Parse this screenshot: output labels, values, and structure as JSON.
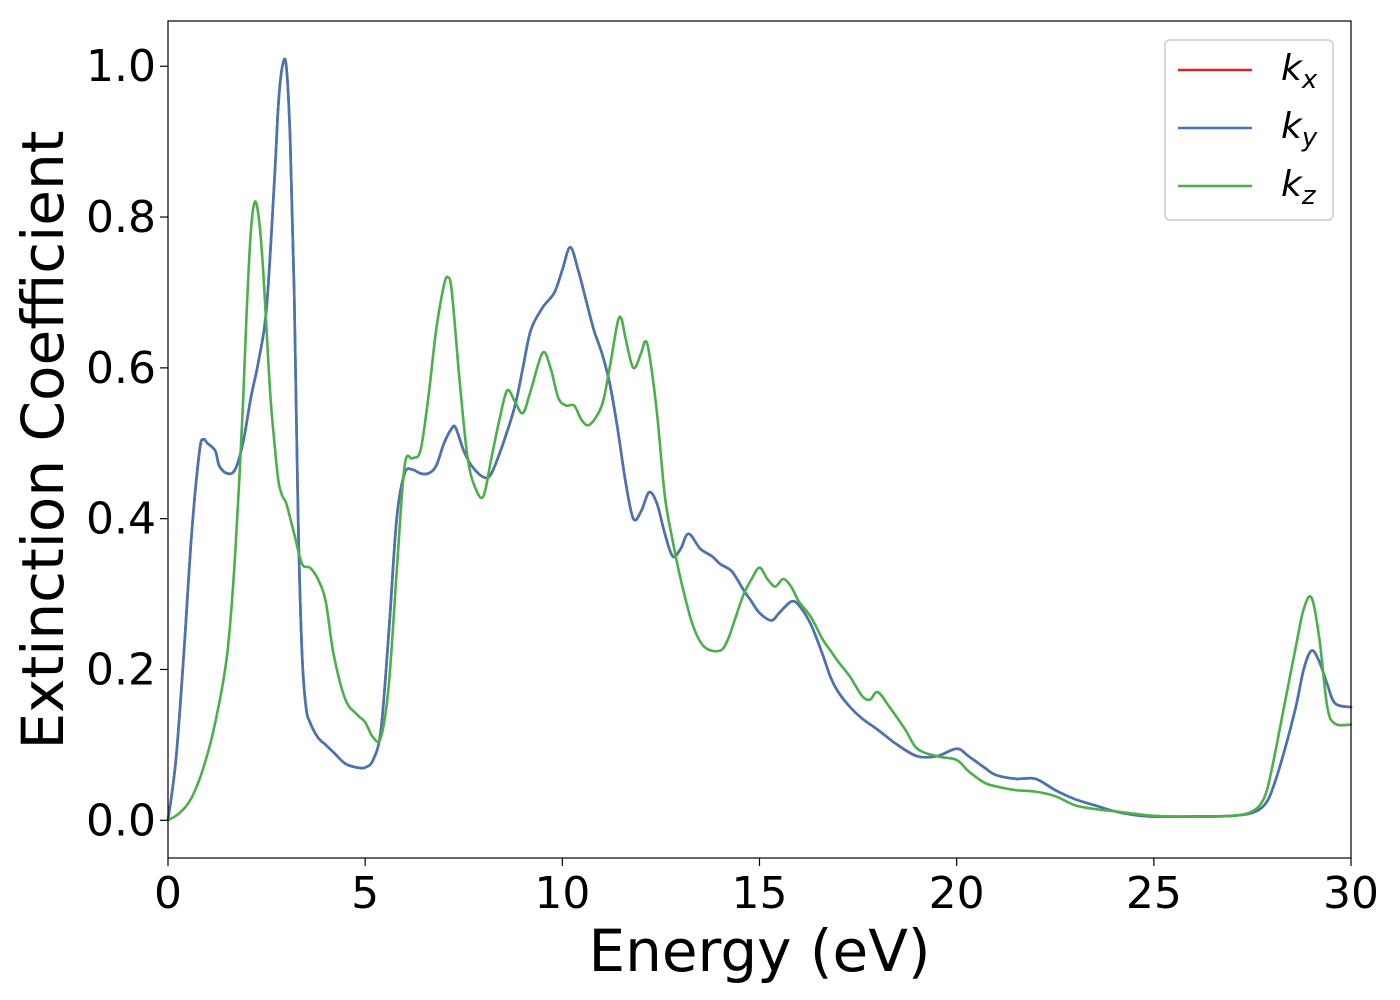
{
  "chart_data": {
    "type": "line",
    "xlabel": "Energy (eV)",
    "ylabel": "Extinction Coefficient",
    "xlim": [
      0,
      30
    ],
    "ylim": [
      -0.05,
      1.06
    ],
    "xticks": [
      0,
      5,
      10,
      15,
      20,
      25,
      30
    ],
    "yticks": [
      0.0,
      0.2,
      0.4,
      0.6,
      0.8,
      1.0
    ],
    "grid": false,
    "legend_position": "top-right",
    "series": [
      {
        "name": "k_x",
        "legend_base": "k",
        "legend_sub": "x",
        "color": "#d62728",
        "x": [
          0,
          0.2,
          0.4,
          0.6,
          0.8,
          0.9,
          1.0,
          1.2,
          1.3,
          1.5,
          1.7,
          1.9,
          2.1,
          2.3,
          2.5,
          2.7,
          2.8,
          2.9,
          3.0,
          3.1,
          3.2,
          3.3,
          3.4,
          3.5,
          3.6,
          3.8,
          4.0,
          4.2,
          4.5,
          4.8,
          5.0,
          5.2,
          5.4,
          5.6,
          5.8,
          6.0,
          6.2,
          6.4,
          6.6,
          6.8,
          7.0,
          7.2,
          7.3,
          7.5,
          7.7,
          8.0,
          8.2,
          8.5,
          8.8,
          9.0,
          9.2,
          9.5,
          9.8,
          10.0,
          10.2,
          10.4,
          10.6,
          10.8,
          11.0,
          11.2,
          11.4,
          11.6,
          11.8,
          12.0,
          12.2,
          12.4,
          12.6,
          12.8,
          13.0,
          13.2,
          13.5,
          13.8,
          14.0,
          14.3,
          14.6,
          14.8,
          15.0,
          15.3,
          15.5,
          15.8,
          16.0,
          16.3,
          16.6,
          16.8,
          17.0,
          17.3,
          17.6,
          18.0,
          18.5,
          19.0,
          19.5,
          20.0,
          20.3,
          20.7,
          21.0,
          21.5,
          22.0,
          22.5,
          23.0,
          23.5,
          24.0,
          24.5,
          25.0,
          26.0,
          27.0,
          27.5,
          27.8,
          28.0,
          28.3,
          28.6,
          28.8,
          29.0,
          29.2,
          29.4,
          29.6,
          30.0
        ],
        "y": [
          0.0,
          0.08,
          0.22,
          0.38,
          0.49,
          0.505,
          0.5,
          0.49,
          0.47,
          0.46,
          0.465,
          0.5,
          0.56,
          0.61,
          0.68,
          0.85,
          0.95,
          1.0,
          1.0,
          0.9,
          0.7,
          0.4,
          0.22,
          0.15,
          0.13,
          0.11,
          0.1,
          0.09,
          0.075,
          0.07,
          0.07,
          0.08,
          0.12,
          0.25,
          0.4,
          0.46,
          0.465,
          0.46,
          0.46,
          0.47,
          0.5,
          0.52,
          0.52,
          0.49,
          0.47,
          0.455,
          0.46,
          0.5,
          0.55,
          0.6,
          0.65,
          0.68,
          0.7,
          0.73,
          0.76,
          0.73,
          0.69,
          0.65,
          0.62,
          0.58,
          0.52,
          0.45,
          0.4,
          0.41,
          0.435,
          0.42,
          0.38,
          0.35,
          0.36,
          0.38,
          0.36,
          0.35,
          0.34,
          0.33,
          0.305,
          0.29,
          0.275,
          0.265,
          0.275,
          0.29,
          0.285,
          0.26,
          0.22,
          0.19,
          0.17,
          0.15,
          0.135,
          0.12,
          0.1,
          0.085,
          0.085,
          0.095,
          0.085,
          0.07,
          0.06,
          0.055,
          0.055,
          0.04,
          0.028,
          0.02,
          0.012,
          0.007,
          0.005,
          0.005,
          0.006,
          0.01,
          0.02,
          0.04,
          0.09,
          0.15,
          0.2,
          0.225,
          0.21,
          0.18,
          0.155,
          0.15
        ]
      },
      {
        "name": "k_y",
        "legend_base": "k",
        "legend_sub": "y",
        "color": "#4575b4",
        "x": [
          0,
          0.2,
          0.4,
          0.6,
          0.8,
          0.9,
          1.0,
          1.2,
          1.3,
          1.5,
          1.7,
          1.9,
          2.1,
          2.3,
          2.5,
          2.7,
          2.8,
          2.9,
          3.0,
          3.1,
          3.2,
          3.3,
          3.4,
          3.5,
          3.6,
          3.8,
          4.0,
          4.2,
          4.5,
          4.8,
          5.0,
          5.2,
          5.4,
          5.6,
          5.8,
          6.0,
          6.2,
          6.4,
          6.6,
          6.8,
          7.0,
          7.2,
          7.3,
          7.5,
          7.7,
          8.0,
          8.2,
          8.5,
          8.8,
          9.0,
          9.2,
          9.5,
          9.8,
          10.0,
          10.2,
          10.4,
          10.6,
          10.8,
          11.0,
          11.2,
          11.4,
          11.6,
          11.8,
          12.0,
          12.2,
          12.4,
          12.6,
          12.8,
          13.0,
          13.2,
          13.5,
          13.8,
          14.0,
          14.3,
          14.6,
          14.8,
          15.0,
          15.3,
          15.5,
          15.8,
          16.0,
          16.3,
          16.6,
          16.8,
          17.0,
          17.3,
          17.6,
          18.0,
          18.5,
          19.0,
          19.5,
          20.0,
          20.3,
          20.7,
          21.0,
          21.5,
          22.0,
          22.5,
          23.0,
          23.5,
          24.0,
          24.5,
          25.0,
          26.0,
          27.0,
          27.5,
          27.8,
          28.0,
          28.3,
          28.6,
          28.8,
          29.0,
          29.2,
          29.4,
          29.6,
          30.0
        ],
        "y": [
          0.0,
          0.08,
          0.22,
          0.38,
          0.49,
          0.505,
          0.5,
          0.49,
          0.47,
          0.46,
          0.465,
          0.5,
          0.56,
          0.61,
          0.68,
          0.85,
          0.95,
          1.0,
          1.0,
          0.9,
          0.7,
          0.4,
          0.22,
          0.15,
          0.13,
          0.11,
          0.1,
          0.09,
          0.075,
          0.07,
          0.07,
          0.08,
          0.12,
          0.25,
          0.4,
          0.46,
          0.465,
          0.46,
          0.46,
          0.47,
          0.5,
          0.52,
          0.52,
          0.49,
          0.47,
          0.455,
          0.46,
          0.5,
          0.55,
          0.6,
          0.65,
          0.68,
          0.7,
          0.73,
          0.76,
          0.73,
          0.69,
          0.65,
          0.62,
          0.58,
          0.52,
          0.45,
          0.4,
          0.41,
          0.435,
          0.42,
          0.38,
          0.35,
          0.36,
          0.38,
          0.36,
          0.35,
          0.34,
          0.33,
          0.305,
          0.29,
          0.275,
          0.265,
          0.275,
          0.29,
          0.285,
          0.26,
          0.22,
          0.19,
          0.17,
          0.15,
          0.135,
          0.12,
          0.1,
          0.085,
          0.085,
          0.095,
          0.085,
          0.07,
          0.06,
          0.055,
          0.055,
          0.04,
          0.028,
          0.02,
          0.012,
          0.007,
          0.005,
          0.005,
          0.006,
          0.01,
          0.02,
          0.04,
          0.09,
          0.15,
          0.2,
          0.225,
          0.21,
          0.18,
          0.155,
          0.15
        ]
      },
      {
        "name": "k_z",
        "legend_base": "k",
        "legend_sub": "z",
        "color": "#4daf4a",
        "x": [
          0,
          0.3,
          0.6,
          0.9,
          1.2,
          1.5,
          1.7,
          1.9,
          2.0,
          2.1,
          2.2,
          2.3,
          2.4,
          2.5,
          2.6,
          2.7,
          2.8,
          2.9,
          3.0,
          3.2,
          3.4,
          3.6,
          3.8,
          4.0,
          4.2,
          4.5,
          4.8,
          5.0,
          5.2,
          5.4,
          5.6,
          5.8,
          6.0,
          6.2,
          6.4,
          6.6,
          6.8,
          7.0,
          7.1,
          7.2,
          7.4,
          7.6,
          7.8,
          8.0,
          8.2,
          8.4,
          8.6,
          8.8,
          9.0,
          9.2,
          9.5,
          9.7,
          9.9,
          10.1,
          10.3,
          10.5,
          10.7,
          11.0,
          11.2,
          11.4,
          11.5,
          11.6,
          11.8,
          12.0,
          12.1,
          12.2,
          12.4,
          12.6,
          12.8,
          13.0,
          13.3,
          13.6,
          14.0,
          14.2,
          14.4,
          14.6,
          14.8,
          15.0,
          15.2,
          15.4,
          15.6,
          15.8,
          16.0,
          16.3,
          16.6,
          16.8,
          17.0,
          17.3,
          17.6,
          17.8,
          18.0,
          18.3,
          18.7,
          19.0,
          19.5,
          20.0,
          20.3,
          20.7,
          21.0,
          21.5,
          22.0,
          22.5,
          23.0,
          23.5,
          24.0,
          25.0,
          26.0,
          27.0,
          27.5,
          27.8,
          28.0,
          28.3,
          28.6,
          28.8,
          29.0,
          29.2,
          29.4,
          29.6,
          30.0
        ],
        "y": [
          0.0,
          0.01,
          0.03,
          0.07,
          0.13,
          0.22,
          0.35,
          0.55,
          0.68,
          0.78,
          0.82,
          0.8,
          0.74,
          0.65,
          0.56,
          0.5,
          0.45,
          0.43,
          0.42,
          0.38,
          0.34,
          0.335,
          0.32,
          0.29,
          0.22,
          0.16,
          0.14,
          0.13,
          0.11,
          0.11,
          0.18,
          0.33,
          0.47,
          0.48,
          0.49,
          0.56,
          0.65,
          0.71,
          0.72,
          0.7,
          0.58,
          0.48,
          0.44,
          0.43,
          0.48,
          0.53,
          0.57,
          0.555,
          0.54,
          0.57,
          0.62,
          0.6,
          0.56,
          0.55,
          0.55,
          0.53,
          0.525,
          0.55,
          0.6,
          0.66,
          0.665,
          0.64,
          0.6,
          0.62,
          0.635,
          0.62,
          0.54,
          0.43,
          0.37,
          0.32,
          0.26,
          0.23,
          0.225,
          0.24,
          0.27,
          0.3,
          0.32,
          0.335,
          0.32,
          0.31,
          0.32,
          0.31,
          0.29,
          0.27,
          0.24,
          0.225,
          0.21,
          0.19,
          0.165,
          0.16,
          0.17,
          0.15,
          0.12,
          0.095,
          0.085,
          0.08,
          0.065,
          0.05,
          0.045,
          0.04,
          0.038,
          0.032,
          0.02,
          0.015,
          0.012,
          0.006,
          0.005,
          0.006,
          0.012,
          0.03,
          0.07,
          0.15,
          0.23,
          0.28,
          0.295,
          0.24,
          0.15,
          0.128,
          0.127
        ]
      }
    ]
  }
}
